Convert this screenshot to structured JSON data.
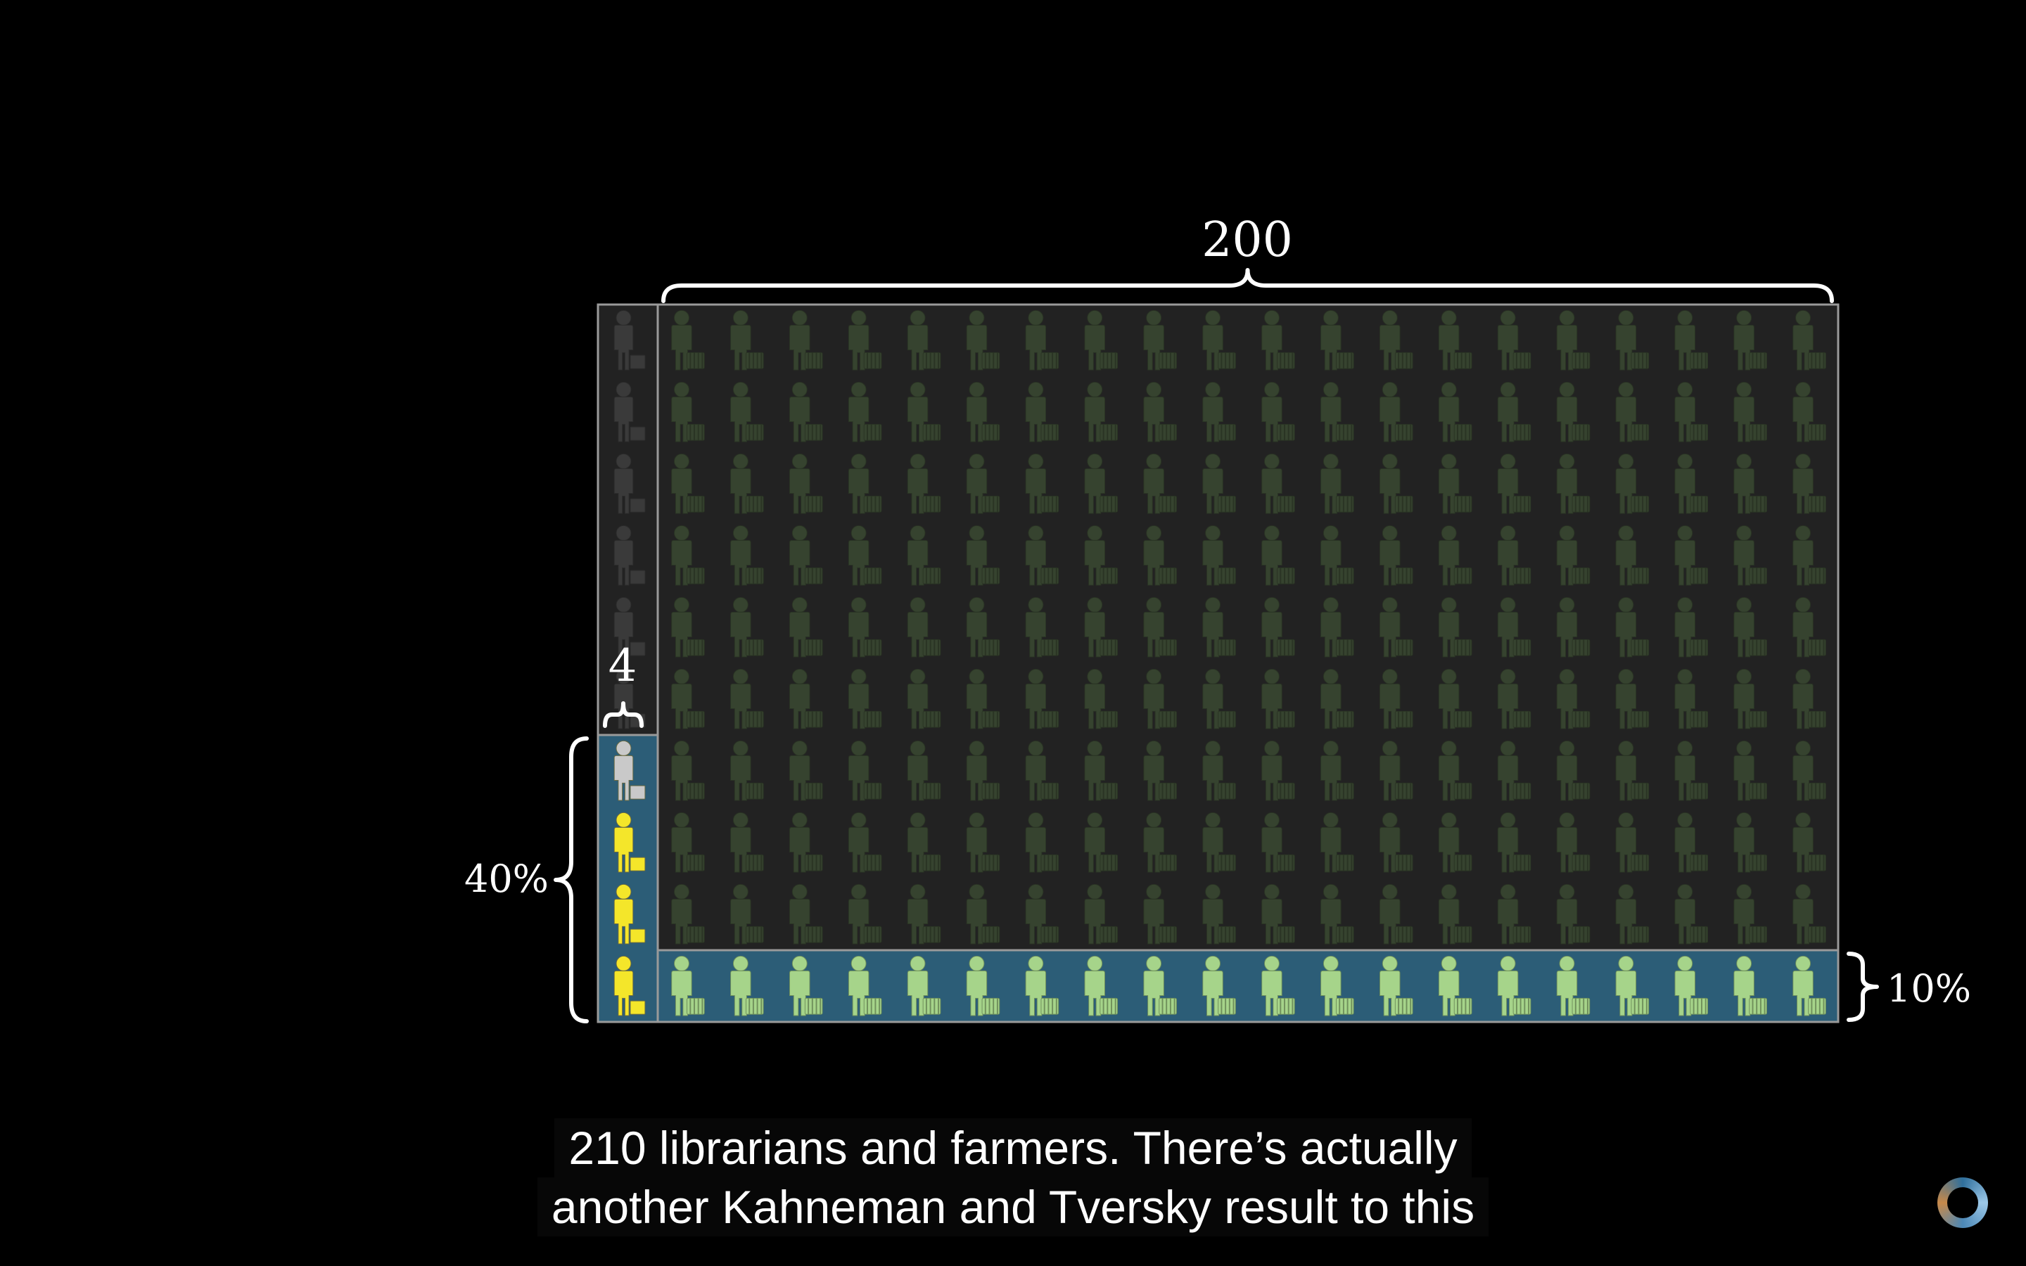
{
  "diagram": {
    "top_label": "200",
    "narrow_label": "4",
    "left_percent_label": "40%",
    "right_percent_label": "10%",
    "grid": {
      "farmer_columns": 20,
      "librarian_columns": 1,
      "rows": 10,
      "highlighted_rows": 1,
      "librarian_highlighted_rows": 4,
      "librarian_yellow_count": 3
    },
    "colors": {
      "background": "#000000",
      "grid_fill": "#222222",
      "grid_border": "#9a9a9a",
      "highlight_fill": "#2c5d77",
      "farmer_dim": "#36432f",
      "farmer_bright": "#a6d48a",
      "librarian_dim": "#3a3a3a",
      "librarian_grey": "#c9c9c9",
      "librarian_yellow": "#f4e62a",
      "brace": "#ffffff"
    },
    "icons": {
      "farmer": "farmer-person-icon",
      "librarian": "librarian-person-icon"
    }
  },
  "subtitles": {
    "line1": "210 librarians and farmers. There’s actually",
    "line2": "another Kahneman and Tversky result to this"
  },
  "spinner": {
    "icon": "loading-spinner-icon"
  }
}
